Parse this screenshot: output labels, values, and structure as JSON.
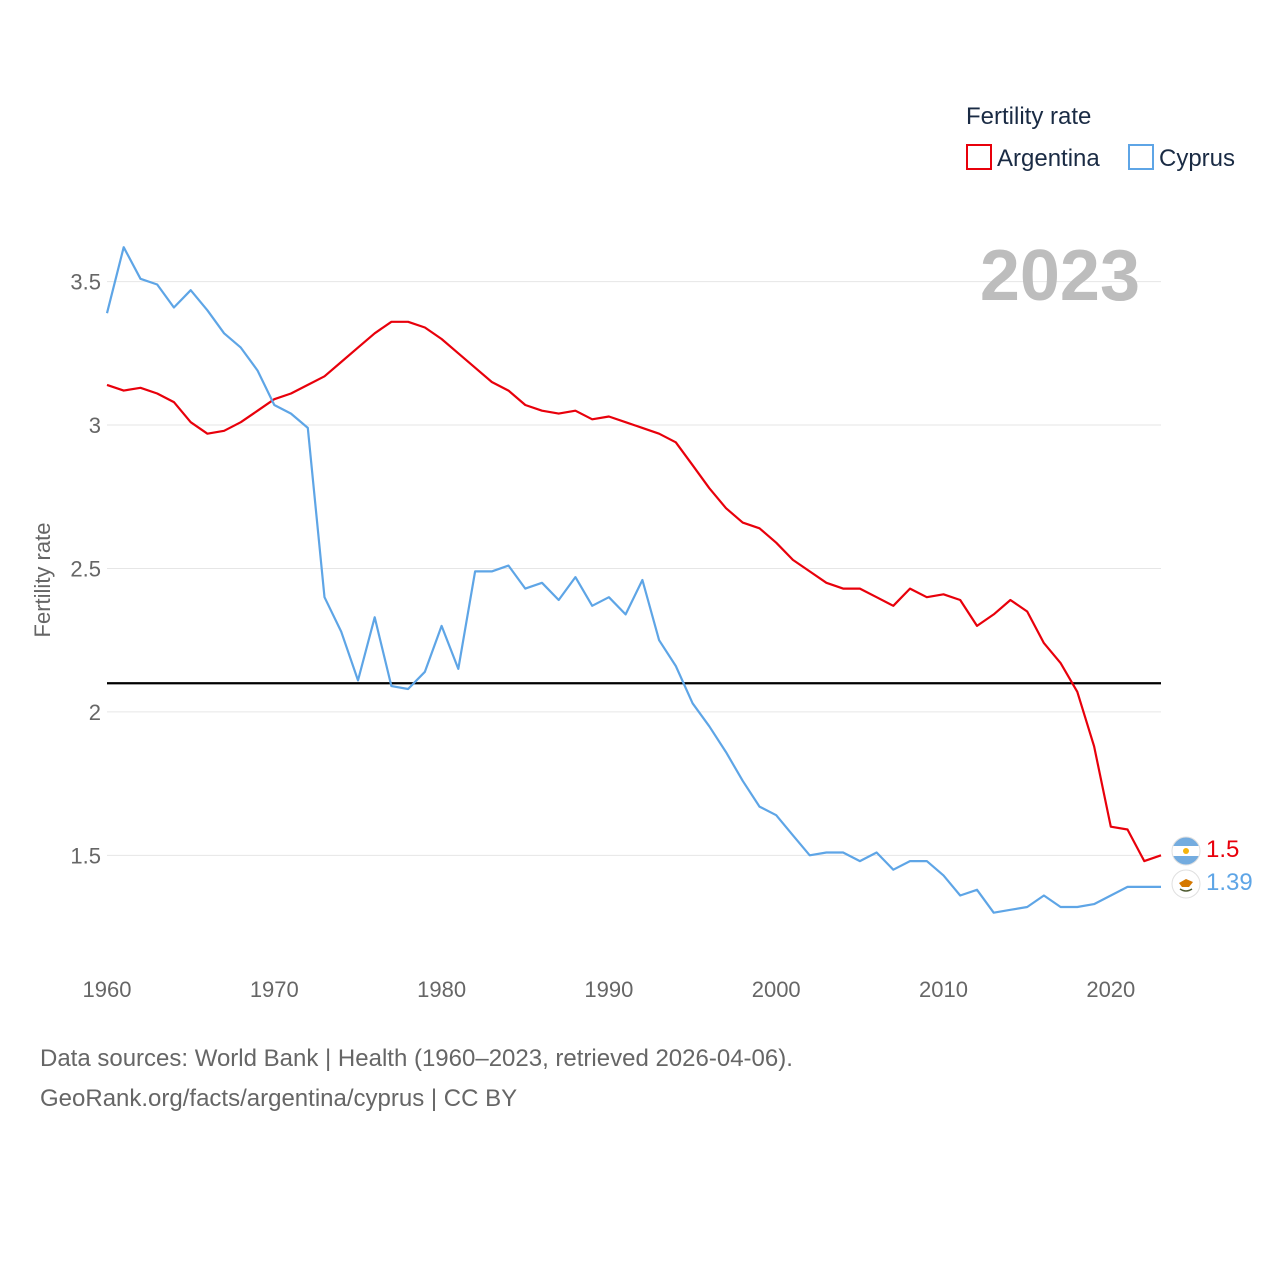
{
  "chart_data": {
    "type": "line",
    "title": "",
    "ylabel": "Fertility rate",
    "xlabel": "",
    "legend_title": "Fertility rate",
    "legend_position": "top-right",
    "current_year": "2023",
    "xlim": [
      1960,
      2023
    ],
    "ylim": [
      1.17,
      3.68
    ],
    "x_ticks": [
      1960,
      1970,
      1980,
      1990,
      2000,
      2010,
      2020
    ],
    "y_ticks": [
      1.5,
      2,
      2.5,
      3,
      3.5
    ],
    "y_tick_labels": [
      "1.5",
      "2",
      "2.5",
      "3",
      "3.5"
    ],
    "grid": true,
    "reference_line": {
      "value": 2.1,
      "color": "#000000"
    },
    "x": [
      1960,
      1961,
      1962,
      1963,
      1964,
      1965,
      1966,
      1967,
      1968,
      1969,
      1970,
      1971,
      1972,
      1973,
      1974,
      1975,
      1976,
      1977,
      1978,
      1979,
      1980,
      1981,
      1982,
      1983,
      1984,
      1985,
      1986,
      1987,
      1988,
      1989,
      1990,
      1991,
      1992,
      1993,
      1994,
      1995,
      1996,
      1997,
      1998,
      1999,
      2000,
      2001,
      2002,
      2003,
      2004,
      2005,
      2006,
      2007,
      2008,
      2009,
      2010,
      2011,
      2012,
      2013,
      2014,
      2015,
      2016,
      2017,
      2018,
      2019,
      2020,
      2021,
      2022,
      2023
    ],
    "series": [
      {
        "name": "Argentina",
        "color": "#e8000b",
        "end_label": "1.5",
        "values": [
          3.14,
          3.12,
          3.13,
          3.11,
          3.08,
          3.01,
          2.97,
          2.98,
          3.01,
          3.05,
          3.09,
          3.11,
          3.14,
          3.17,
          3.22,
          3.27,
          3.32,
          3.36,
          3.36,
          3.34,
          3.3,
          3.25,
          3.2,
          3.15,
          3.12,
          3.07,
          3.05,
          3.04,
          3.05,
          3.02,
          3.03,
          3.01,
          2.99,
          2.97,
          2.94,
          2.86,
          2.78,
          2.71,
          2.66,
          2.64,
          2.59,
          2.53,
          2.49,
          2.45,
          2.43,
          2.43,
          2.4,
          2.37,
          2.43,
          2.4,
          2.41,
          2.39,
          2.3,
          2.34,
          2.39,
          2.35,
          2.24,
          2.17,
          2.07,
          1.88,
          1.6,
          1.59,
          1.48,
          1.5
        ]
      },
      {
        "name": "Cyprus",
        "color": "#5ea5e6",
        "end_label": "1.39",
        "values": [
          3.39,
          3.62,
          3.51,
          3.49,
          3.41,
          3.47,
          3.4,
          3.32,
          3.27,
          3.19,
          3.07,
          3.04,
          2.99,
          2.4,
          2.28,
          2.11,
          2.33,
          2.09,
          2.08,
          2.14,
          2.3,
          2.15,
          2.49,
          2.49,
          2.51,
          2.43,
          2.45,
          2.39,
          2.47,
          2.37,
          2.4,
          2.34,
          2.46,
          2.25,
          2.16,
          2.03,
          1.95,
          1.86,
          1.76,
          1.67,
          1.64,
          1.57,
          1.5,
          1.51,
          1.51,
          1.48,
          1.51,
          1.45,
          1.48,
          1.48,
          1.43,
          1.36,
          1.38,
          1.3,
          1.31,
          1.32,
          1.36,
          1.32,
          1.32,
          1.33,
          1.36,
          1.39,
          1.39,
          1.39
        ]
      }
    ]
  },
  "footer": {
    "line1": "Data sources: World Bank | Health (1960–2023, retrieved 2026-04-06).",
    "line2": "GeoRank.org/facts/argentina/cyprus | CC BY"
  }
}
